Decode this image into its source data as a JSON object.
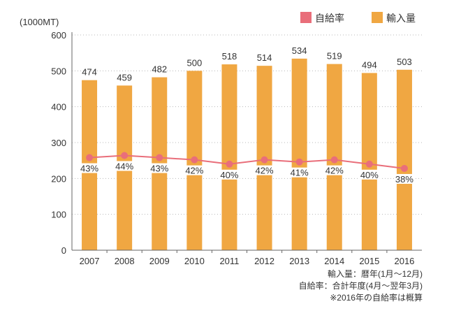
{
  "chart_data": {
    "type": "bar",
    "unit_label": "(1000MT)",
    "categories": [
      "2007",
      "2008",
      "2009",
      "2010",
      "2011",
      "2012",
      "2013",
      "2014",
      "2015",
      "2016"
    ],
    "ylim": [
      0,
      600
    ],
    "yticks": [
      "0",
      "100",
      "200",
      "300",
      "400",
      "500",
      "600"
    ],
    "series": [
      {
        "name": "輸入量",
        "kind": "bar",
        "color": "#F0A742",
        "values": [
          474,
          459,
          482,
          500,
          518,
          514,
          534,
          519,
          494,
          503
        ],
        "labels": [
          "474",
          "459",
          "482",
          "500",
          "518",
          "514",
          "534",
          "519",
          "494",
          "503"
        ]
      },
      {
        "name": "自給率",
        "kind": "line",
        "color": "#E96E7A",
        "values_percent": [
          43,
          44,
          43,
          42,
          40,
          42,
          41,
          42,
          40,
          38
        ],
        "labels": [
          "43%",
          "44%",
          "43%",
          "42%",
          "40%",
          "42%",
          "41%",
          "42%",
          "40%",
          "38%"
        ]
      }
    ],
    "legend": {
      "position": "top-right",
      "items": [
        {
          "label": "自給率",
          "color": "#E96E7A"
        },
        {
          "label": "輸入量",
          "color": "#F0A742"
        }
      ]
    },
    "grid": "horizontal-dotted",
    "notes": [
      "輸入量：暦年(1月〜12月)",
      "自給率：合計年度(4月〜翌年3月)",
      "※2016年の自給率は概算"
    ]
  }
}
